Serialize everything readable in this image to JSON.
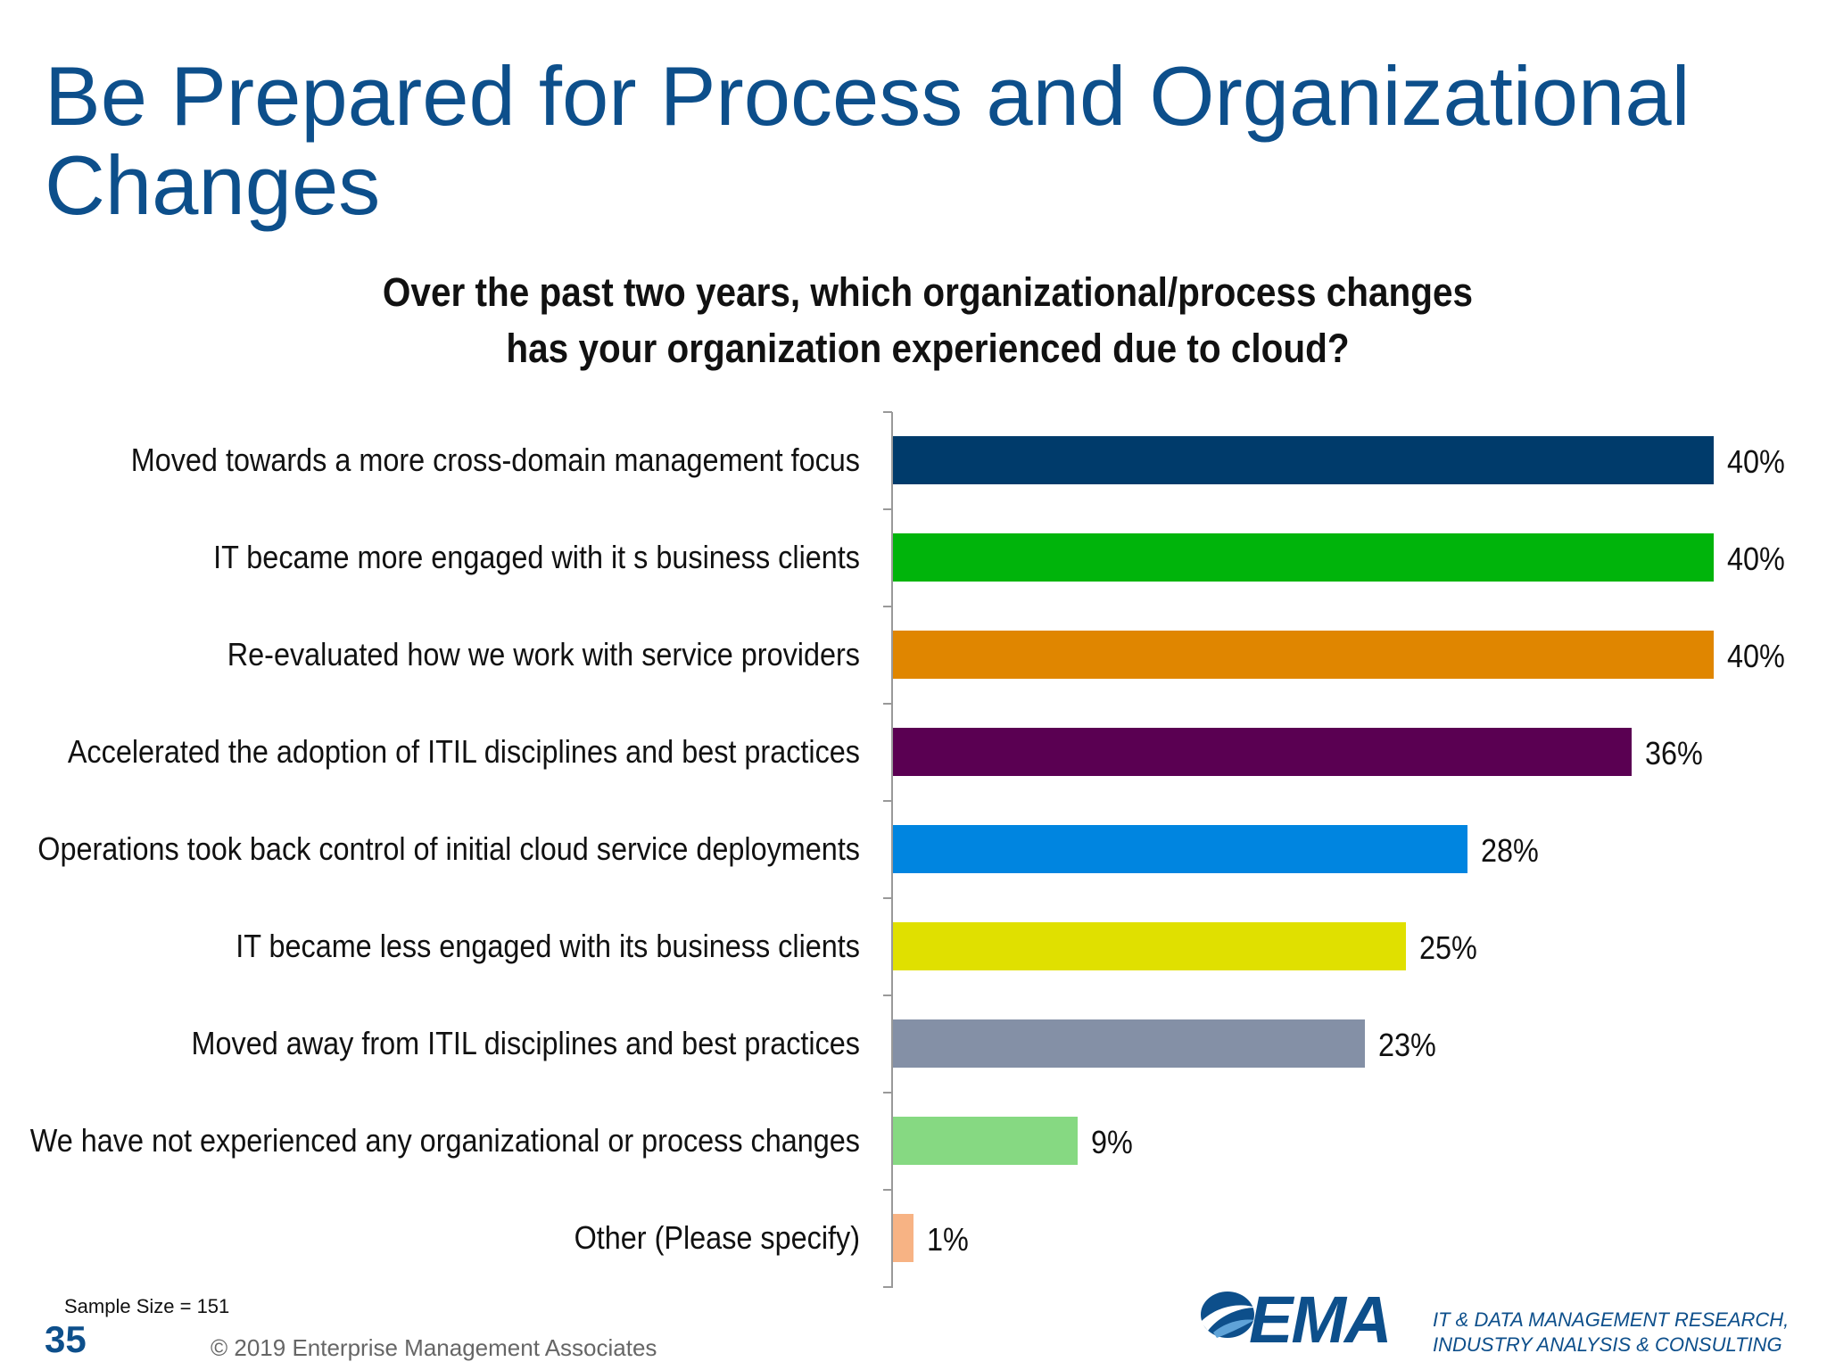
{
  "slide": {
    "title": "Be Prepared for Process and Organizational Changes",
    "page_number": "35",
    "sample_size": "Sample Size = 151",
    "copyright": "© 2019 Enterprise Management Associates",
    "logo_text": "EMA",
    "tagline_line1": "IT & DATA MANAGEMENT RESEARCH,",
    "tagline_line2": "INDUSTRY ANALYSIS & CONSULTING",
    "brand_color": "#0d4f8b"
  },
  "chart_data": {
    "type": "bar",
    "orientation": "horizontal",
    "title_line1": "Over the past two years, which organizational/process changes",
    "title_line2": "has your organization experienced due to cloud?",
    "categories": [
      "Moved towards a more cross-domain management focus",
      "IT became more engaged with it s business clients",
      "Re-evaluated how we work with service providers",
      "Accelerated the adoption of ITIL disciplines and best practices",
      "Operations took back control of initial cloud service deployments",
      "IT became less engaged with its business clients",
      "Moved away from ITIL disciplines and best practices",
      "We have not experienced any organizational or process changes",
      "Other (Please specify)"
    ],
    "values": [
      40,
      40,
      40,
      36,
      28,
      25,
      23,
      9,
      1
    ],
    "value_labels": [
      "40%",
      "40%",
      "40%",
      "36%",
      "28%",
      "25%",
      "23%",
      "9%",
      "1%"
    ],
    "colors": [
      "#003b6b",
      "#00b40b",
      "#e08600",
      "#5a0052",
      "#0085e0",
      "#e0e000",
      "#8490a6",
      "#86d982",
      "#f7b384"
    ],
    "xlim": [
      0,
      40
    ],
    "grid": false,
    "legend": "none"
  }
}
